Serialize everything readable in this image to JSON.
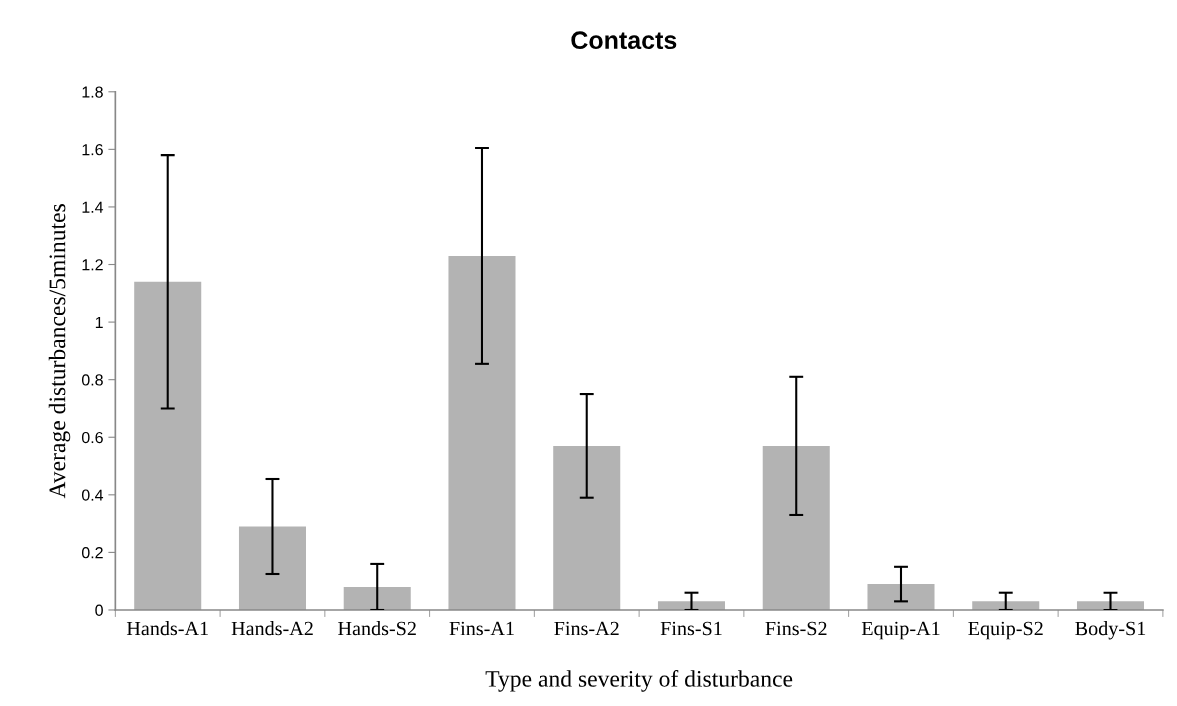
{
  "chart_data": {
    "type": "bar",
    "title": "Contacts",
    "xlabel": "Type and severity of disturbance",
    "ylabel": "Average disturbances/5minutes",
    "categories": [
      "Hands-A1",
      "Hands-A2",
      "Hands-S2",
      "Fins-A1",
      "Fins-A2",
      "Fins-S1",
      "Fins-S2",
      "Equip-A1",
      "Equip-S2",
      "Body-S1"
    ],
    "values": [
      1.14,
      0.29,
      0.08,
      1.23,
      0.57,
      0.03,
      0.57,
      0.09,
      0.03,
      0.03
    ],
    "errors": [
      0.44,
      0.165,
      0.08,
      0.375,
      0.18,
      0.03,
      0.24,
      0.06,
      0.03,
      0.03
    ],
    "color": "#b3b3b3",
    "ylim": [
      0,
      1.8
    ],
    "yticks": [
      0,
      0.2,
      0.4,
      0.6,
      0.8,
      {
        "value": 1,
        "label": "1"
      },
      1.2,
      1.4,
      1.6,
      1.8
    ],
    "grid": false,
    "legend": false
  }
}
